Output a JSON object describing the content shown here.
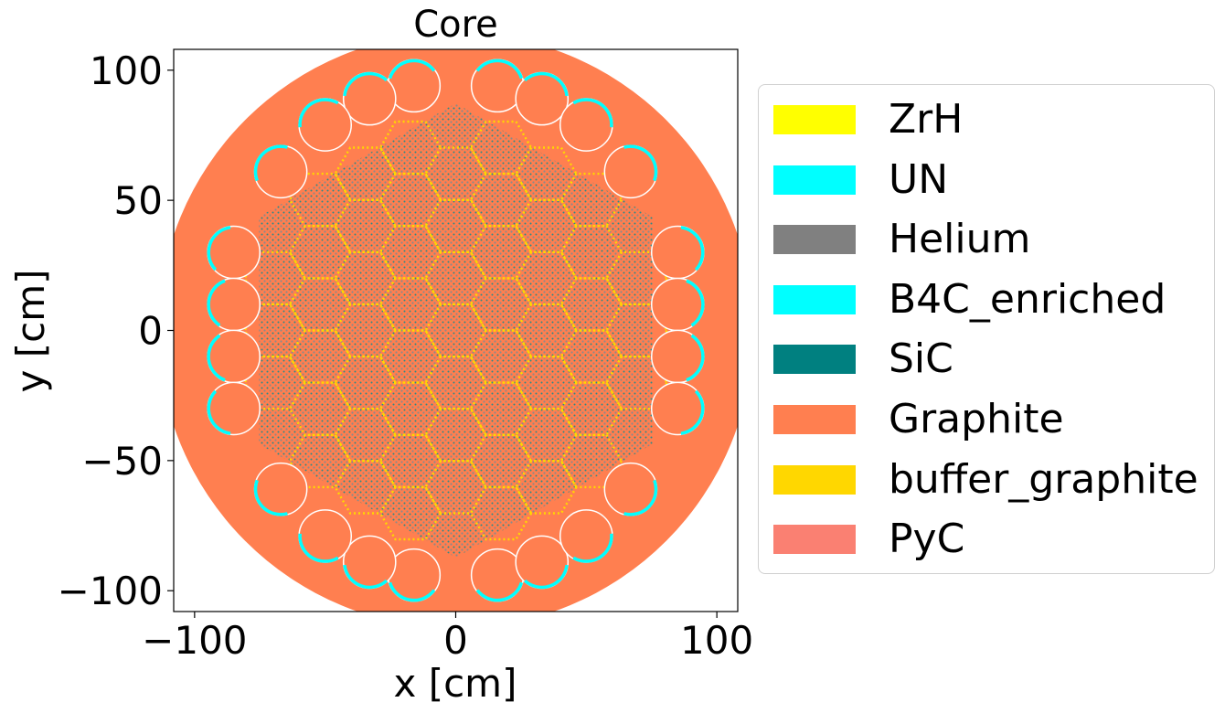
{
  "chart_data": {
    "type": "heatmap",
    "title": "Core",
    "xlabel": "x [cm]",
    "ylabel": "y [cm]",
    "xlim": [
      -108,
      108
    ],
    "ylim": [
      -108,
      108
    ],
    "xticks": [
      {
        "value": -100,
        "label": "−100"
      },
      {
        "value": 0,
        "label": "0"
      },
      {
        "value": 100,
        "label": "100"
      }
    ],
    "yticks": [
      {
        "value": 100,
        "label": "100"
      },
      {
        "value": 50,
        "label": "50"
      },
      {
        "value": 0,
        "label": "0"
      },
      {
        "value": -50,
        "label": "−50"
      },
      {
        "value": -100,
        "label": "−100"
      }
    ],
    "grid": false,
    "legend_position": "right, outside plot",
    "legend": [
      {
        "label": "ZrH",
        "color": "#ffff00"
      },
      {
        "label": "UN",
        "color": "#00ffff"
      },
      {
        "label": "Helium",
        "color": "#808080"
      },
      {
        "label": "B4C_enriched",
        "color": "#00ffff"
      },
      {
        "label": "SiC",
        "color": "#008080"
      },
      {
        "label": "Graphite",
        "color": "#ff7f50"
      },
      {
        "label": "buffer_graphite",
        "color": "#ffd700"
      },
      {
        "label": "PyC",
        "color": "#fa8072"
      }
    ],
    "geometry": {
      "reflector_radius": 114,
      "core_hexagon_radius": 87,
      "assembly_pitch": 20,
      "control_drum_radius": 10,
      "control_drums": [
        [
          16,
          94
        ],
        [
          33,
          89
        ],
        [
          50,
          79
        ],
        [
          67,
          61
        ],
        [
          -16,
          94
        ],
        [
          -33,
          89
        ],
        [
          -50,
          79
        ],
        [
          -67,
          61
        ],
        [
          16,
          -94
        ],
        [
          33,
          -89
        ],
        [
          50,
          -79
        ],
        [
          67,
          -61
        ],
        [
          -16,
          -94
        ],
        [
          -33,
          -89
        ],
        [
          -50,
          -79
        ],
        [
          -67,
          -61
        ],
        [
          85,
          30
        ],
        [
          85,
          10
        ],
        [
          85,
          -10
        ],
        [
          85,
          -30
        ],
        [
          -85,
          30
        ],
        [
          -85,
          10
        ],
        [
          -85,
          -10
        ],
        [
          -85,
          -30
        ]
      ]
    }
  }
}
